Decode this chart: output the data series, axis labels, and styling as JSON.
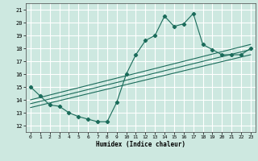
{
  "xlabel": "Humidex (Indice chaleur)",
  "bg_color": "#cde8e0",
  "grid_color": "#ffffff",
  "line_color": "#1a6b5a",
  "xlim": [
    -0.5,
    23.5
  ],
  "ylim": [
    11.5,
    21.5
  ],
  "xticks": [
    0,
    1,
    2,
    3,
    4,
    5,
    6,
    7,
    8,
    9,
    10,
    11,
    12,
    13,
    14,
    15,
    16,
    17,
    18,
    19,
    20,
    21,
    22,
    23
  ],
  "yticks": [
    12,
    13,
    14,
    15,
    16,
    17,
    18,
    19,
    20,
    21
  ],
  "curve1_x": [
    0,
    1,
    2,
    3,
    4,
    5,
    6,
    7,
    8,
    9,
    10,
    11,
    12,
    13,
    14,
    15,
    16,
    17,
    18,
    19,
    20,
    21,
    22,
    23
  ],
  "curve1_y": [
    15.0,
    14.3,
    13.6,
    13.5,
    13.0,
    12.7,
    12.5,
    12.3,
    12.3,
    13.8,
    16.0,
    17.5,
    18.6,
    19.0,
    20.5,
    19.7,
    19.9,
    20.7,
    18.3,
    17.9,
    17.5,
    17.5,
    17.5,
    18.0
  ],
  "line2_pts": [
    [
      0,
      14.0
    ],
    [
      23,
      18.3
    ]
  ],
  "line3_pts": [
    [
      0,
      13.7
    ],
    [
      23,
      17.9
    ]
  ],
  "line4_pts": [
    [
      0,
      13.4
    ],
    [
      23,
      17.5
    ]
  ]
}
